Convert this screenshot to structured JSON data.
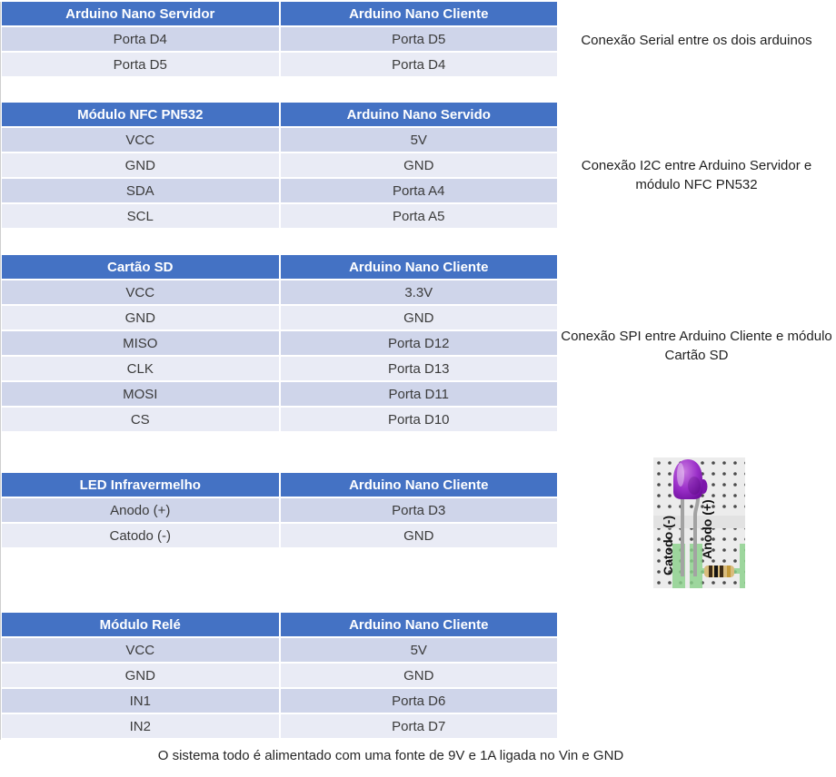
{
  "colors": {
    "header_bg": "#4472C4",
    "header_text": "#ffffff",
    "row_band_dark": "#CFD5EA",
    "row_band_light": "#E9EBF5",
    "cell_text": "#3b3b3b",
    "led_purple": "#9b30c9",
    "breadboard_bg": "#ececec",
    "rail_green": "#9fd69f"
  },
  "tables": [
    {
      "headers": [
        "Arduino Nano Servidor",
        "Arduino Nano Cliente"
      ],
      "rows": [
        [
          "Porta D4",
          "Porta D5"
        ],
        [
          "Porta D5",
          "Porta D4"
        ]
      ],
      "annotation": "Conexão Serial entre os dois arduinos"
    },
    {
      "headers": [
        "Módulo NFC PN532",
        "Arduino Nano Servido"
      ],
      "rows": [
        [
          "VCC",
          "5V"
        ],
        [
          "GND",
          "GND"
        ],
        [
          "SDA",
          "Porta A4"
        ],
        [
          "SCL",
          "Porta A5"
        ]
      ],
      "annotation": "Conexão I2C entre Arduino Servidor e módulo NFC PN532"
    },
    {
      "headers": [
        "Cartão SD",
        "Arduino Nano Cliente"
      ],
      "rows": [
        [
          "VCC",
          "3.3V"
        ],
        [
          "GND",
          "GND"
        ],
        [
          "MISO",
          "Porta D12"
        ],
        [
          "CLK",
          "Porta D13"
        ],
        [
          "MOSI",
          "Porta D11"
        ],
        [
          "CS",
          "Porta D10"
        ]
      ],
      "annotation": "Conexão SPI entre Arduino Cliente e módulo Cartão SD"
    },
    {
      "headers": [
        "LED Infravermelho",
        "Arduino Nano Cliente"
      ],
      "rows": [
        [
          "Anodo (+)",
          "Porta D3"
        ],
        [
          "Catodo (-)",
          "GND"
        ]
      ],
      "annotation": ""
    },
    {
      "headers": [
        "Módulo Relé",
        "Arduino Nano Cliente"
      ],
      "rows": [
        [
          "VCC",
          "5V"
        ],
        [
          "GND",
          "GND"
        ],
        [
          "IN1",
          "Porta D6"
        ],
        [
          "IN2",
          "Porta D7"
        ]
      ],
      "annotation": ""
    }
  ],
  "led_figure": {
    "catodo_label": "Catodo (-)",
    "anodo_label": "Anodo (+)"
  },
  "footer": {
    "note": "O sistema todo é alimentado com uma fonte de 9V e 1A ligada no Vin e GND"
  }
}
